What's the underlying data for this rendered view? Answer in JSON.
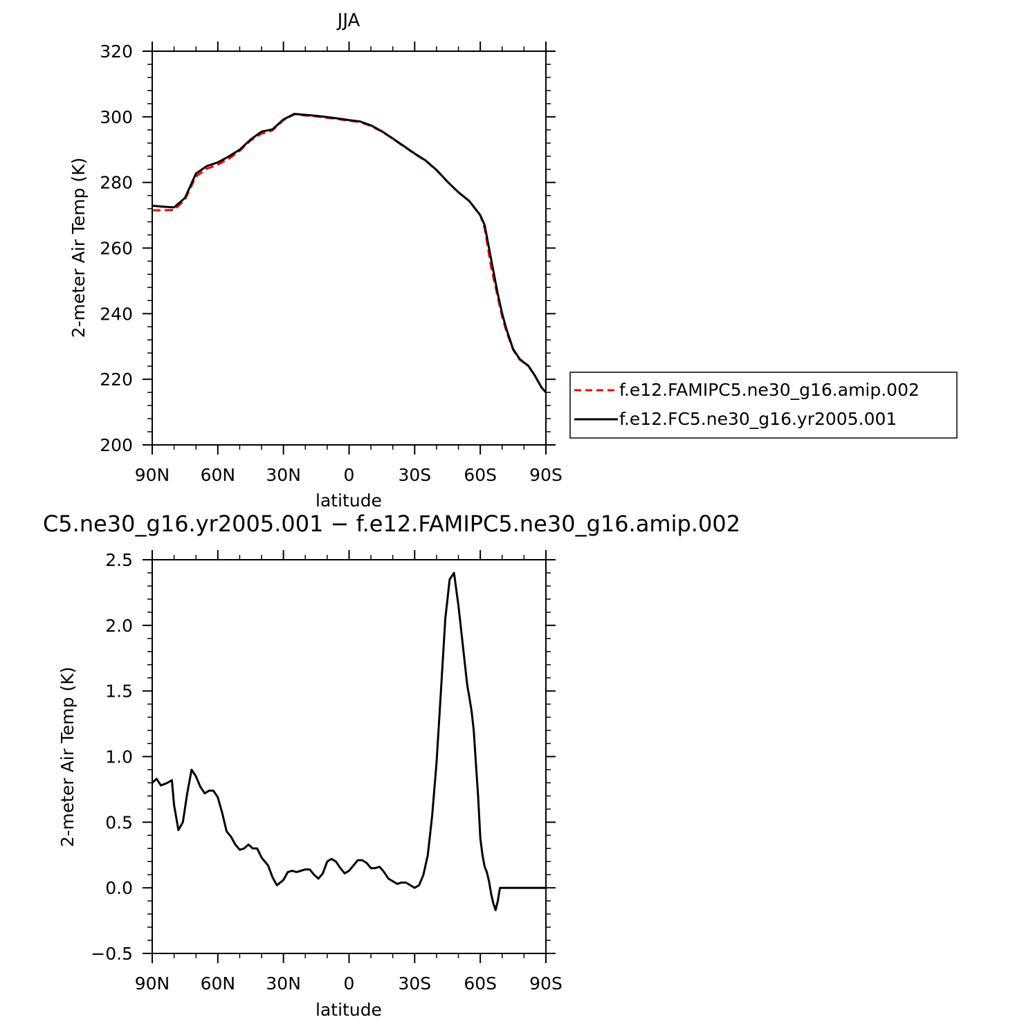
{
  "chart_data": [
    {
      "type": "line",
      "title": "JJA",
      "xlabel": "latitude",
      "ylabel": "2-meter Air Temp (K)",
      "ylim": [
        200,
        320
      ],
      "yticks": [
        200,
        220,
        240,
        260,
        280,
        300,
        320
      ],
      "ytick_labels": [
        "200",
        "220",
        "240",
        "260",
        "280",
        "300",
        "320"
      ],
      "xlim": [
        90,
        -90
      ],
      "xticks": [
        90,
        60,
        30,
        0,
        -30,
        -60,
        -90
      ],
      "xtick_labels": [
        "90N",
        "60N",
        "30N",
        "0",
        "30S",
        "60S",
        "90S"
      ],
      "x_note": "latitude in degrees; positive = N, negative = S",
      "grid": false,
      "legend_position": "right",
      "series": [
        {
          "name": "f.e12.FAMIPC5.ne30_g16.amip.002",
          "color": "#ff0000",
          "dash": "dashed",
          "x": [
            90,
            85,
            80,
            75,
            70,
            65,
            60,
            55,
            50,
            45,
            40,
            37,
            35,
            30,
            25,
            20,
            15,
            10,
            5,
            0,
            -5,
            -10,
            -15,
            -20,
            -25,
            -30,
            -35,
            -40,
            -45,
            -50,
            -55,
            -60,
            -62,
            -65,
            -68,
            -70,
            -72,
            -75,
            -78,
            -80,
            -82,
            -85,
            -88,
            -90
          ],
          "y": [
            271.5,
            271.5,
            271.6,
            274.8,
            281.8,
            284.2,
            285.4,
            287.2,
            289.6,
            292.8,
            294.9,
            295.3,
            295.9,
            299.0,
            300.8,
            300.4,
            300.1,
            299.7,
            299.3,
            298.8,
            298.4,
            297.2,
            295.5,
            293.3,
            291.0,
            288.7,
            286.6,
            283.7,
            280.2,
            277.0,
            274.3,
            270.0,
            266.0,
            254.0,
            245.0,
            239.0,
            234.5,
            229.0,
            226.0,
            225.0,
            224.0,
            221.0,
            217.5,
            216.0
          ]
        },
        {
          "name": "f.e12.FC5.ne30_g16.yr2005.001",
          "color": "#000000",
          "dash": "solid",
          "x": [
            90,
            85,
            80,
            75,
            70,
            65,
            60,
            55,
            50,
            45,
            40,
            37,
            35,
            30,
            25,
            20,
            15,
            10,
            5,
            0,
            -5,
            -10,
            -15,
            -20,
            -25,
            -30,
            -35,
            -40,
            -45,
            -50,
            -55,
            -60,
            -62,
            -65,
            -68,
            -70,
            -72,
            -75,
            -78,
            -80,
            -82,
            -85,
            -88,
            -90
          ],
          "y": [
            272.9,
            272.6,
            272.4,
            275.3,
            282.7,
            285.0,
            286.1,
            287.9,
            290.0,
            293.1,
            295.5,
            295.9,
            296.2,
            299.2,
            300.9,
            300.6,
            300.3,
            299.9,
            299.5,
            299.0,
            298.6,
            297.4,
            295.6,
            293.4,
            291.1,
            288.8,
            286.7,
            283.8,
            280.2,
            277.0,
            274.3,
            270.0,
            267.0,
            256.4,
            246.0,
            240.0,
            235.2,
            229.2,
            226.2,
            225.1,
            224.1,
            221.1,
            217.5,
            216.0
          ]
        }
      ]
    },
    {
      "type": "line",
      "title": "C5.ne30_g16.yr2005.001 − f.e12.FAMIPC5.ne30_g16.amip.002",
      "xlabel": "latitude",
      "ylabel": "2-meter Air Temp (K)",
      "ylim": [
        -0.5,
        2.5
      ],
      "yticks": [
        -0.5,
        0.0,
        0.5,
        1.0,
        1.5,
        2.0,
        2.5
      ],
      "ytick_labels": [
        "−0.5",
        "0.0",
        "0.5",
        "1.0",
        "1.5",
        "2.0",
        "2.5"
      ],
      "xlim": [
        90,
        -90
      ],
      "xticks": [
        90,
        60,
        30,
        0,
        -30,
        -60,
        -90
      ],
      "xtick_labels": [
        "90N",
        "60N",
        "30N",
        "0",
        "30S",
        "60S",
        "90S"
      ],
      "x_note": "latitude in degrees; positive = N, negative = S",
      "grid": false,
      "series": [
        {
          "color": "#000000",
          "dash": "solid",
          "x": [
            90,
            88,
            86,
            83,
            81,
            80,
            78,
            76,
            74,
            72,
            70,
            68,
            66,
            64,
            62,
            60,
            58,
            56,
            54,
            52,
            50,
            48,
            46,
            44,
            42,
            40,
            37,
            35,
            33,
            30,
            28,
            26,
            24,
            22,
            20,
            18,
            16,
            14,
            12,
            10,
            8,
            6,
            4,
            2,
            0,
            -2,
            -4,
            -6,
            -8,
            -10,
            -12,
            -14,
            -16,
            -18,
            -20,
            -22,
            -24,
            -26,
            -28,
            -30,
            -32,
            -34,
            -36,
            -38,
            -40,
            -42,
            -44,
            -46,
            -48,
            -50,
            -52,
            -54,
            -55,
            -56,
            -57,
            -58,
            -59,
            -60,
            -61,
            -62,
            -63,
            -64,
            -65,
            -66,
            -67,
            -68,
            -69,
            -70,
            -71,
            -72,
            -73,
            -74,
            -75,
            -76,
            -77,
            -78,
            -79,
            -80,
            -82,
            -84,
            -86,
            -88,
            -89,
            -90
          ],
          "y": [
            0.8,
            0.83,
            0.78,
            0.8,
            0.82,
            0.63,
            0.44,
            0.5,
            0.72,
            0.9,
            0.85,
            0.77,
            0.72,
            0.74,
            0.74,
            0.69,
            0.57,
            0.43,
            0.39,
            0.33,
            0.29,
            0.3,
            0.33,
            0.3,
            0.3,
            0.23,
            0.17,
            0.08,
            0.02,
            0.06,
            0.12,
            0.13,
            0.12,
            0.13,
            0.14,
            0.14,
            0.1,
            0.07,
            0.11,
            0.2,
            0.22,
            0.2,
            0.15,
            0.11,
            0.13,
            0.17,
            0.21,
            0.21,
            0.19,
            0.15,
            0.15,
            0.16,
            0.12,
            0.07,
            0.05,
            0.03,
            0.04,
            0.04,
            0.02,
            0.0,
            0.02,
            0.1,
            0.25,
            0.55,
            0.95,
            1.5,
            2.05,
            2.35,
            2.4,
            2.15,
            1.85,
            1.55,
            1.45,
            1.35,
            1.2,
            0.95,
            0.7,
            0.38,
            0.25,
            0.16,
            0.12,
            0.05,
            -0.05,
            -0.12,
            -0.17,
            -0.1,
            0.0,
            0.0,
            0.0,
            0.0,
            0.0,
            0.0,
            0.0,
            0.0,
            0.0,
            0.0,
            0.0,
            0.0,
            0.0,
            0.0,
            0.0,
            0.0,
            0.0,
            0.0
          ]
        }
      ]
    }
  ]
}
